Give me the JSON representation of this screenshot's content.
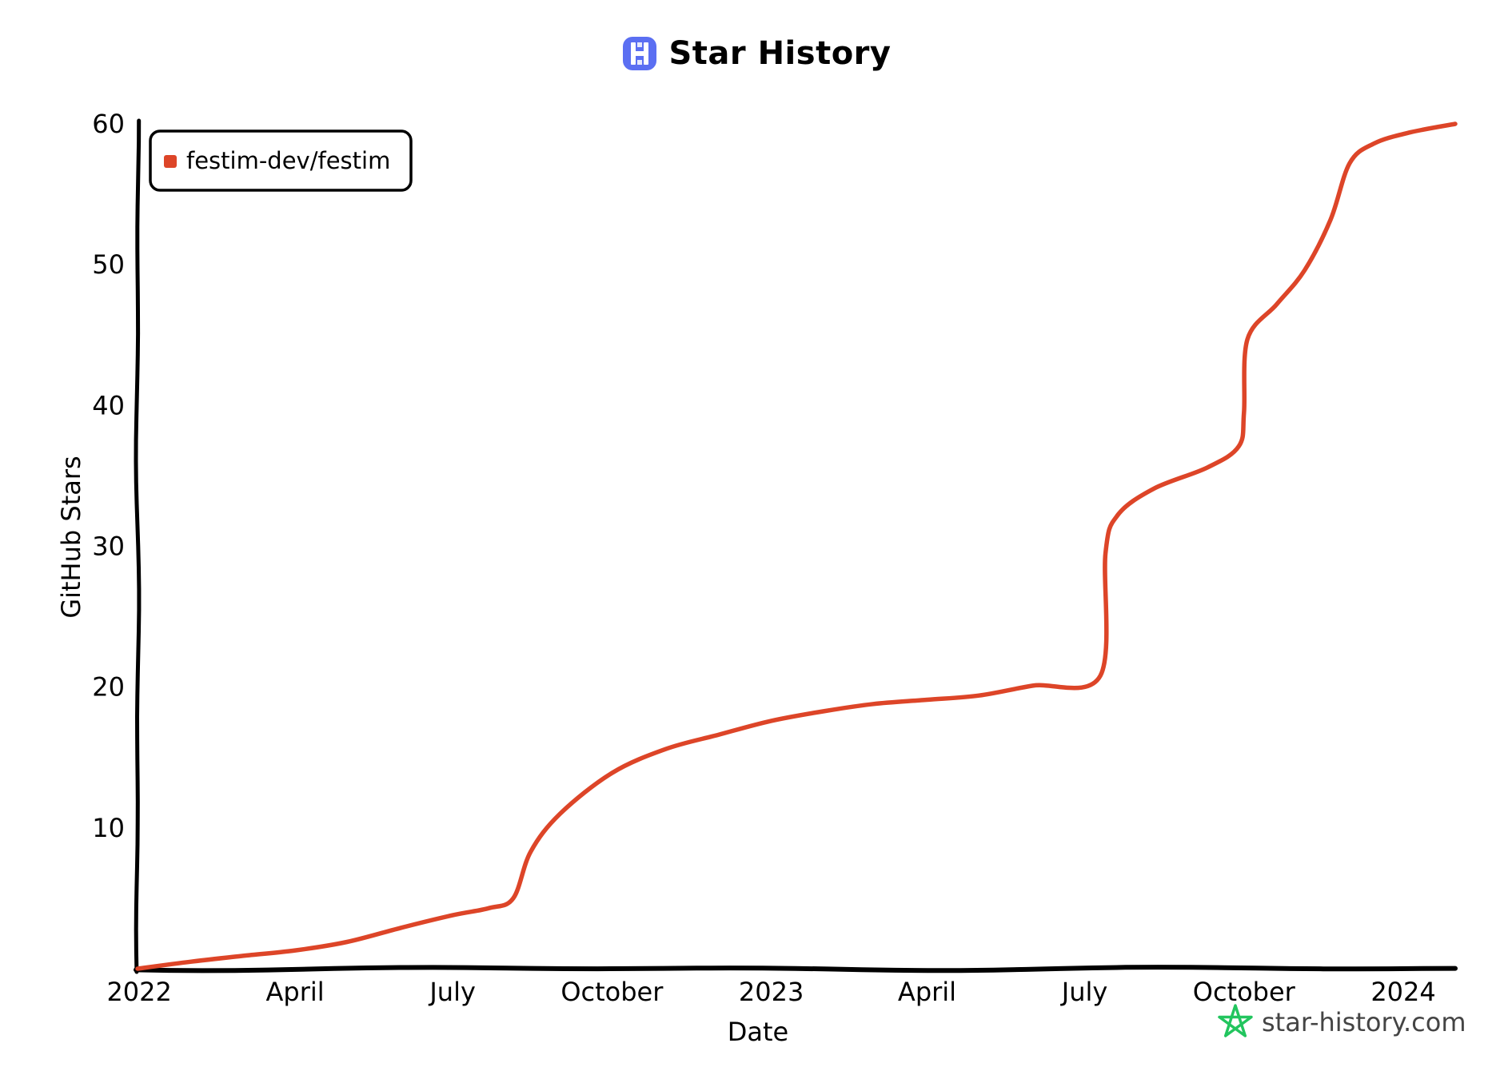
{
  "header": {
    "title": "Star History",
    "logo_icon": "star-history-logo-icon"
  },
  "footer": {
    "watermark": "star-history.com",
    "watermark_icon": "star-outline-icon",
    "watermark_color": "#22c55e"
  },
  "chart_data": {
    "type": "line",
    "title": "Star History",
    "xlabel": "Date",
    "ylabel": "GitHub Stars",
    "x_ticks": [
      "2022",
      "April",
      "July",
      "October",
      "2023",
      "April",
      "July",
      "October",
      "2024"
    ],
    "x_tick_dates": [
      "2022-01-01",
      "2022-04-01",
      "2022-07-01",
      "2022-10-01",
      "2023-01-01",
      "2023-04-01",
      "2023-07-01",
      "2023-10-01",
      "2024-01-01"
    ],
    "y_ticks": [
      10,
      20,
      30,
      40,
      50,
      60
    ],
    "ylim": [
      0,
      60
    ],
    "xlim": [
      "2021-12-31",
      "2024-01-31"
    ],
    "legend_position": "top-left",
    "grid": false,
    "series": [
      {
        "name": "festim-dev/festim",
        "color": "#dd4528",
        "points": [
          [
            "2021-12-31",
            0
          ],
          [
            "2022-01-31",
            0.5
          ],
          [
            "2022-03-01",
            0.9
          ],
          [
            "2022-04-01",
            1.3
          ],
          [
            "2022-05-01",
            1.9
          ],
          [
            "2022-06-01",
            2.9
          ],
          [
            "2022-07-01",
            3.8
          ],
          [
            "2022-07-22",
            4.3
          ],
          [
            "2022-08-05",
            5.0
          ],
          [
            "2022-08-15",
            8.3
          ],
          [
            "2022-09-01",
            11.0
          ],
          [
            "2022-10-01",
            13.9
          ],
          [
            "2022-11-01",
            15.6
          ],
          [
            "2022-12-01",
            16.6
          ],
          [
            "2023-01-01",
            17.6
          ],
          [
            "2023-02-01",
            18.3
          ],
          [
            "2023-03-01",
            18.8
          ],
          [
            "2023-04-01",
            19.1
          ],
          [
            "2023-05-01",
            19.4
          ],
          [
            "2023-06-01",
            20.1
          ],
          [
            "2023-07-10",
            20.8
          ],
          [
            "2023-07-13",
            29.5
          ],
          [
            "2023-07-20",
            32.2
          ],
          [
            "2023-08-10",
            34.1
          ],
          [
            "2023-09-10",
            35.6
          ],
          [
            "2023-09-28",
            37.1
          ],
          [
            "2023-10-01",
            39.5
          ],
          [
            "2023-10-03",
            44.7
          ],
          [
            "2023-10-20",
            47.2
          ],
          [
            "2023-11-05",
            49.6
          ],
          [
            "2023-11-20",
            53.2
          ],
          [
            "2023-12-01",
            57.2
          ],
          [
            "2023-12-15",
            58.6
          ],
          [
            "2024-01-05",
            59.4
          ],
          [
            "2024-01-31",
            60.0
          ]
        ]
      }
    ]
  }
}
